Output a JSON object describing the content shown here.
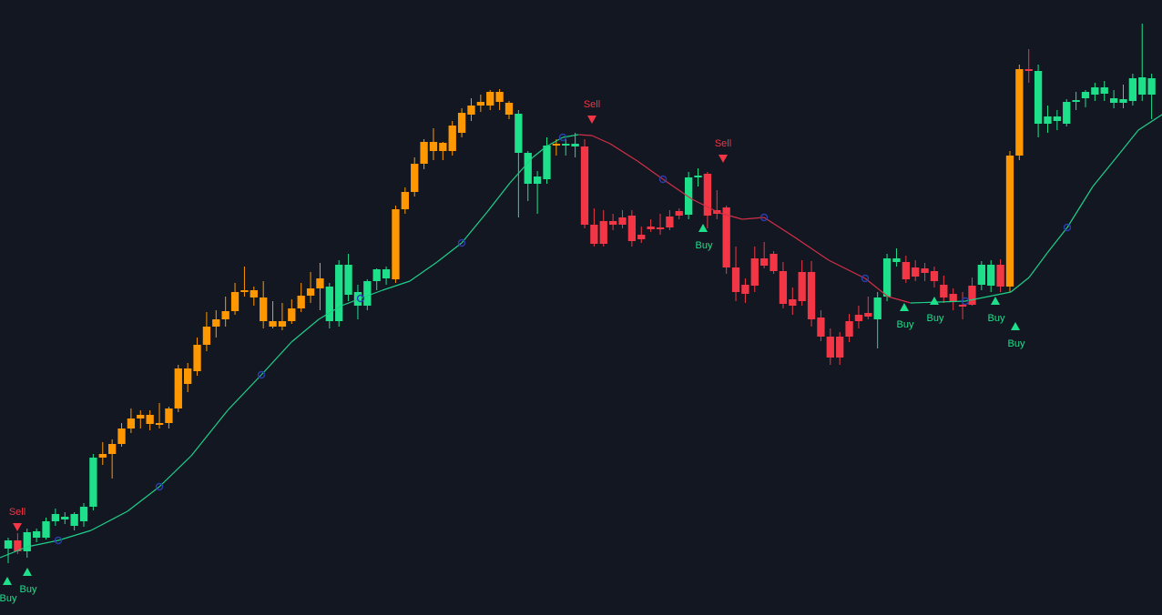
{
  "chart_data": {
    "type": "candlestick",
    "title": "",
    "xlabel": "",
    "ylabel": "",
    "grid": false,
    "ylim": [
      0,
      671
    ],
    "colors": {
      "background": "#131722",
      "bull": "#1fe08a",
      "bear": "#f23645",
      "neutral": "#ff9800",
      "ma_up": "#1fcf88",
      "ma_down": "#d23047",
      "ma_marker": "#2a3eb0",
      "buy": "#1fe08a",
      "sell": "#f23645"
    },
    "candles": [
      {
        "o": 68,
        "h": 80,
        "l": 52,
        "c": 77,
        "t": "bull"
      },
      {
        "o": 77,
        "h": 85,
        "l": 62,
        "c": 65,
        "t": "bear"
      },
      {
        "o": 65,
        "h": 90,
        "l": 58,
        "c": 86,
        "t": "bull"
      },
      {
        "o": 80,
        "h": 90,
        "l": 75,
        "c": 87,
        "t": "bull"
      },
      {
        "o": 80,
        "h": 102,
        "l": 78,
        "c": 98,
        "t": "bull"
      },
      {
        "o": 98,
        "h": 112,
        "l": 93,
        "c": 106,
        "t": "bull"
      },
      {
        "o": 100,
        "h": 108,
        "l": 95,
        "c": 103,
        "t": "bull"
      },
      {
        "o": 93,
        "h": 108,
        "l": 88,
        "c": 106,
        "t": "bull"
      },
      {
        "o": 98,
        "h": 118,
        "l": 92,
        "c": 114,
        "t": "bull"
      },
      {
        "o": 114,
        "h": 172,
        "l": 110,
        "c": 168,
        "t": "bull"
      },
      {
        "o": 168,
        "h": 185,
        "l": 160,
        "c": 172,
        "t": "neutral"
      },
      {
        "o": 172,
        "h": 188,
        "l": 145,
        "c": 183,
        "t": "neutral"
      },
      {
        "o": 183,
        "h": 206,
        "l": 180,
        "c": 200,
        "t": "neutral"
      },
      {
        "o": 200,
        "h": 222,
        "l": 195,
        "c": 211,
        "t": "neutral"
      },
      {
        "o": 211,
        "h": 220,
        "l": 200,
        "c": 215,
        "t": "neutral"
      },
      {
        "o": 205,
        "h": 220,
        "l": 198,
        "c": 215,
        "t": "neutral"
      },
      {
        "o": 205,
        "h": 228,
        "l": 200,
        "c": 206,
        "t": "neutral"
      },
      {
        "o": 206,
        "h": 224,
        "l": 200,
        "c": 222,
        "t": "neutral"
      },
      {
        "o": 222,
        "h": 270,
        "l": 218,
        "c": 266,
        "t": "neutral"
      },
      {
        "o": 266,
        "h": 272,
        "l": 240,
        "c": 249,
        "t": "neutral"
      },
      {
        "o": 263,
        "h": 300,
        "l": 258,
        "c": 292,
        "t": "neutral"
      },
      {
        "o": 292,
        "h": 328,
        "l": 285,
        "c": 312,
        "t": "neutral"
      },
      {
        "o": 312,
        "h": 330,
        "l": 300,
        "c": 320,
        "t": "neutral"
      },
      {
        "o": 320,
        "h": 345,
        "l": 312,
        "c": 329,
        "t": "neutral"
      },
      {
        "o": 329,
        "h": 360,
        "l": 325,
        "c": 350,
        "t": "neutral"
      },
      {
        "o": 350,
        "h": 378,
        "l": 345,
        "c": 352,
        "t": "neutral"
      },
      {
        "o": 352,
        "h": 356,
        "l": 335,
        "c": 344,
        "t": "neutral"
      },
      {
        "o": 344,
        "h": 362,
        "l": 310,
        "c": 318,
        "t": "neutral"
      },
      {
        "o": 318,
        "h": 340,
        "l": 310,
        "c": 312,
        "t": "neutral"
      },
      {
        "o": 312,
        "h": 338,
        "l": 308,
        "c": 318,
        "t": "neutral"
      },
      {
        "o": 318,
        "h": 342,
        "l": 315,
        "c": 332,
        "t": "neutral"
      },
      {
        "o": 332,
        "h": 360,
        "l": 328,
        "c": 346,
        "t": "neutral"
      },
      {
        "o": 346,
        "h": 372,
        "l": 338,
        "c": 354,
        "t": "neutral"
      },
      {
        "o": 354,
        "h": 382,
        "l": 330,
        "c": 365,
        "t": "neutral"
      },
      {
        "o": 318,
        "h": 360,
        "l": 310,
        "c": 356,
        "t": "bull"
      },
      {
        "o": 318,
        "h": 385,
        "l": 312,
        "c": 380,
        "t": "bull"
      },
      {
        "o": 347,
        "h": 392,
        "l": 340,
        "c": 380,
        "t": "bull"
      },
      {
        "o": 335,
        "h": 358,
        "l": 320,
        "c": 350,
        "t": "bull"
      },
      {
        "o": 335,
        "h": 364,
        "l": 330,
        "c": 362,
        "t": "bull"
      },
      {
        "o": 362,
        "h": 376,
        "l": 352,
        "c": 375,
        "t": "bull"
      },
      {
        "o": 365,
        "h": 378,
        "l": 358,
        "c": 375,
        "t": "bull"
      },
      {
        "o": 364,
        "h": 445,
        "l": 360,
        "c": 441,
        "t": "neutral"
      },
      {
        "o": 441,
        "h": 465,
        "l": 436,
        "c": 460,
        "t": "neutral"
      },
      {
        "o": 460,
        "h": 498,
        "l": 455,
        "c": 491,
        "t": "neutral"
      },
      {
        "o": 491,
        "h": 518,
        "l": 485,
        "c": 515,
        "t": "neutral"
      },
      {
        "o": 505,
        "h": 530,
        "l": 495,
        "c": 515,
        "t": "neutral"
      },
      {
        "o": 505,
        "h": 515,
        "l": 495,
        "c": 514,
        "t": "neutral"
      },
      {
        "o": 505,
        "h": 538,
        "l": 500,
        "c": 533,
        "t": "neutral"
      },
      {
        "o": 525,
        "h": 552,
        "l": 520,
        "c": 547,
        "t": "neutral"
      },
      {
        "o": 545,
        "h": 563,
        "l": 538,
        "c": 555,
        "t": "neutral"
      },
      {
        "o": 555,
        "h": 567,
        "l": 548,
        "c": 559,
        "t": "neutral"
      },
      {
        "o": 555,
        "h": 572,
        "l": 550,
        "c": 570,
        "t": "neutral"
      },
      {
        "o": 559,
        "h": 573,
        "l": 550,
        "c": 570,
        "t": "neutral"
      },
      {
        "o": 545,
        "h": 560,
        "l": 540,
        "c": 558,
        "t": "neutral"
      },
      {
        "o": 503,
        "h": 550,
        "l": 432,
        "c": 546,
        "t": "bull"
      },
      {
        "o": 469,
        "h": 505,
        "l": 450,
        "c": 503,
        "t": "bull"
      },
      {
        "o": 469,
        "h": 483,
        "l": 436,
        "c": 477,
        "t": "bull"
      },
      {
        "o": 474,
        "h": 520,
        "l": 469,
        "c": 511,
        "t": "bull"
      },
      {
        "o": 511,
        "h": 518,
        "l": 500,
        "c": 513,
        "t": "neutral"
      },
      {
        "o": 511,
        "h": 518,
        "l": 500,
        "c": 513,
        "t": "bull"
      },
      {
        "o": 510,
        "h": 525,
        "l": 498,
        "c": 513,
        "t": "bull"
      },
      {
        "o": 510,
        "h": 518,
        "l": 420,
        "c": 424,
        "t": "bear"
      },
      {
        "o": 424,
        "h": 442,
        "l": 400,
        "c": 403,
        "t": "bear"
      },
      {
        "o": 428,
        "h": 440,
        "l": 400,
        "c": 403,
        "t": "bear"
      },
      {
        "o": 428,
        "h": 436,
        "l": 418,
        "c": 424,
        "t": "bear"
      },
      {
        "o": 432,
        "h": 440,
        "l": 420,
        "c": 424,
        "t": "bear"
      },
      {
        "o": 434,
        "h": 440,
        "l": 400,
        "c": 406,
        "t": "bear"
      },
      {
        "o": 413,
        "h": 422,
        "l": 404,
        "c": 408,
        "t": "bear"
      },
      {
        "o": 422,
        "h": 430,
        "l": 416,
        "c": 419,
        "t": "bear"
      },
      {
        "o": 419,
        "h": 436,
        "l": 413,
        "c": 421,
        "t": "bear"
      },
      {
        "o": 433,
        "h": 440,
        "l": 418,
        "c": 421,
        "t": "bear"
      },
      {
        "o": 439,
        "h": 442,
        "l": 430,
        "c": 434,
        "t": "bear"
      },
      {
        "o": 435,
        "h": 482,
        "l": 430,
        "c": 476,
        "t": "bull"
      },
      {
        "o": 476,
        "h": 486,
        "l": 466,
        "c": 478,
        "t": "bull"
      },
      {
        "o": 480,
        "h": 482,
        "l": 420,
        "c": 434,
        "t": "bear"
      },
      {
        "o": 440,
        "h": 462,
        "l": 430,
        "c": 436,
        "t": "bear"
      },
      {
        "o": 443,
        "h": 445,
        "l": 370,
        "c": 377,
        "t": "bear"
      },
      {
        "o": 377,
        "h": 400,
        "l": 340,
        "c": 350,
        "t": "bear"
      },
      {
        "o": 358,
        "h": 365,
        "l": 338,
        "c": 348,
        "t": "bear"
      },
      {
        "o": 357,
        "h": 400,
        "l": 350,
        "c": 387,
        "t": "bear"
      },
      {
        "o": 387,
        "h": 405,
        "l": 376,
        "c": 379,
        "t": "bear"
      },
      {
        "o": 392,
        "h": 395,
        "l": 370,
        "c": 373,
        "t": "bear"
      },
      {
        "o": 373,
        "h": 383,
        "l": 332,
        "c": 337,
        "t": "bear"
      },
      {
        "o": 335,
        "h": 355,
        "l": 325,
        "c": 342,
        "t": "bear"
      },
      {
        "o": 372,
        "h": 385,
        "l": 335,
        "c": 340,
        "t": "bear"
      },
      {
        "o": 372,
        "h": 384,
        "l": 312,
        "c": 320,
        "t": "bear"
      },
      {
        "o": 322,
        "h": 330,
        "l": 296,
        "c": 301,
        "t": "bear"
      },
      {
        "o": 301,
        "h": 310,
        "l": 270,
        "c": 278,
        "t": "bear"
      },
      {
        "o": 301,
        "h": 306,
        "l": 270,
        "c": 278,
        "t": "bear"
      },
      {
        "o": 318,
        "h": 326,
        "l": 295,
        "c": 301,
        "t": "bear"
      },
      {
        "o": 318,
        "h": 335,
        "l": 310,
        "c": 325,
        "t": "bear"
      },
      {
        "o": 327,
        "h": 345,
        "l": 320,
        "c": 323,
        "t": "bear"
      },
      {
        "o": 320,
        "h": 350,
        "l": 288,
        "c": 344,
        "t": "bull"
      },
      {
        "o": 345,
        "h": 392,
        "l": 340,
        "c": 387,
        "t": "bull"
      },
      {
        "o": 383,
        "h": 398,
        "l": 378,
        "c": 387,
        "t": "bull"
      },
      {
        "o": 383,
        "h": 390,
        "l": 360,
        "c": 364,
        "t": "bear"
      },
      {
        "o": 377,
        "h": 385,
        "l": 362,
        "c": 367,
        "t": "bear"
      },
      {
        "o": 376,
        "h": 382,
        "l": 362,
        "c": 371,
        "t": "bear"
      },
      {
        "o": 373,
        "h": 378,
        "l": 355,
        "c": 362,
        "t": "bear"
      },
      {
        "o": 358,
        "h": 368,
        "l": 338,
        "c": 344,
        "t": "bear"
      },
      {
        "o": 348,
        "h": 354,
        "l": 330,
        "c": 340,
        "t": "bear"
      },
      {
        "o": 336,
        "h": 350,
        "l": 320,
        "c": 334,
        "t": "bear"
      },
      {
        "o": 357,
        "h": 366,
        "l": 335,
        "c": 336,
        "t": "bear"
      },
      {
        "o": 358,
        "h": 384,
        "l": 352,
        "c": 380,
        "t": "bull"
      },
      {
        "o": 357,
        "h": 385,
        "l": 350,
        "c": 380,
        "t": "bull"
      },
      {
        "o": 380,
        "h": 386,
        "l": 350,
        "c": 356,
        "t": "bear"
      },
      {
        "o": 356,
        "h": 505,
        "l": 350,
        "c": 500,
        "t": "neutral"
      },
      {
        "o": 500,
        "h": 600,
        "l": 495,
        "c": 595,
        "t": "neutral"
      },
      {
        "o": 593,
        "h": 617,
        "l": 580,
        "c": 595,
        "t": "bear"
      },
      {
        "o": 593,
        "h": 600,
        "l": 520,
        "c": 535,
        "t": "bull"
      },
      {
        "o": 535,
        "h": 555,
        "l": 525,
        "c": 543,
        "t": "bull"
      },
      {
        "o": 538,
        "h": 550,
        "l": 528,
        "c": 543,
        "t": "bull"
      },
      {
        "o": 535,
        "h": 562,
        "l": 532,
        "c": 559,
        "t": "bull"
      },
      {
        "o": 559,
        "h": 570,
        "l": 550,
        "c": 561,
        "t": "bull"
      },
      {
        "o": 563,
        "h": 572,
        "l": 553,
        "c": 570,
        "t": "bull"
      },
      {
        "o": 567,
        "h": 580,
        "l": 560,
        "c": 575,
        "t": "bull"
      },
      {
        "o": 568,
        "h": 582,
        "l": 560,
        "c": 575,
        "t": "bull"
      },
      {
        "o": 558,
        "h": 572,
        "l": 552,
        "c": 563,
        "t": "bull"
      },
      {
        "o": 558,
        "h": 578,
        "l": 552,
        "c": 562,
        "t": "bull"
      },
      {
        "o": 560,
        "h": 590,
        "l": 555,
        "c": 585,
        "t": "bull"
      },
      {
        "o": 567,
        "h": 645,
        "l": 560,
        "c": 586,
        "t": "bull"
      },
      {
        "o": 567,
        "h": 590,
        "l": 540,
        "c": 585,
        "t": "bull"
      }
    ],
    "moving_average": [
      [
        0,
        58
      ],
      [
        30,
        70
      ],
      [
        64,
        77
      ],
      [
        100,
        88
      ],
      [
        140,
        109
      ],
      [
        175,
        136
      ],
      [
        210,
        170
      ],
      [
        250,
        220
      ],
      [
        287,
        259
      ],
      [
        320,
        295
      ],
      [
        350,
        320
      ],
      [
        375,
        335
      ],
      [
        396,
        343
      ],
      [
        420,
        352
      ],
      [
        450,
        362
      ],
      [
        480,
        383
      ],
      [
        507,
        404
      ],
      [
        535,
        438
      ],
      [
        560,
        470
      ],
      [
        585,
        498
      ],
      [
        600,
        510
      ],
      [
        618,
        520
      ],
      [
        635,
        523
      ],
      [
        650,
        522
      ],
      [
        670,
        513
      ],
      [
        700,
        494
      ],
      [
        728,
        474
      ],
      [
        760,
        452
      ],
      [
        790,
        437
      ],
      [
        815,
        430
      ],
      [
        839,
        432
      ],
      [
        870,
        412
      ],
      [
        910,
        385
      ],
      [
        950,
        365
      ],
      [
        975,
        345
      ],
      [
        1000,
        338
      ],
      [
        1030,
        339
      ],
      [
        1060,
        340
      ],
      [
        1090,
        346
      ],
      [
        1110,
        350
      ],
      [
        1130,
        366
      ],
      [
        1150,
        393
      ],
      [
        1172,
        421
      ],
      [
        1200,
        466
      ],
      [
        1230,
        503
      ],
      [
        1250,
        528
      ],
      [
        1276,
        545
      ]
    ],
    "ma_down_range": [
      635,
      1010
    ],
    "ma_markers": [
      [
        64,
        77
      ],
      [
        175,
        136
      ],
      [
        287,
        259
      ],
      [
        396,
        343
      ],
      [
        507,
        404
      ],
      [
        618,
        520
      ],
      [
        728,
        474
      ],
      [
        839,
        432
      ],
      [
        950,
        365
      ],
      [
        1060,
        340
      ],
      [
        1172,
        421
      ]
    ],
    "signals": [
      {
        "type": "sell",
        "label": "Sell",
        "x": 19,
        "y": 92
      },
      {
        "type": "buy",
        "label": "Buy",
        "x": 8,
        "y": 32
      },
      {
        "type": "buy",
        "label": "Buy",
        "x": 30,
        "y": 42
      },
      {
        "type": "sell",
        "label": "Sell",
        "x": 650,
        "y": 540
      },
      {
        "type": "sell",
        "label": "Sell",
        "x": 794,
        "y": 497
      },
      {
        "type": "buy",
        "label": "Buy",
        "x": 772,
        "y": 420
      },
      {
        "type": "buy",
        "label": "Buy",
        "x": 993,
        "y": 333
      },
      {
        "type": "buy",
        "label": "Buy",
        "x": 1026,
        "y": 340
      },
      {
        "type": "buy",
        "label": "Buy",
        "x": 1093,
        "y": 340
      },
      {
        "type": "buy",
        "label": "Buy",
        "x": 1115,
        "y": 312
      }
    ]
  }
}
